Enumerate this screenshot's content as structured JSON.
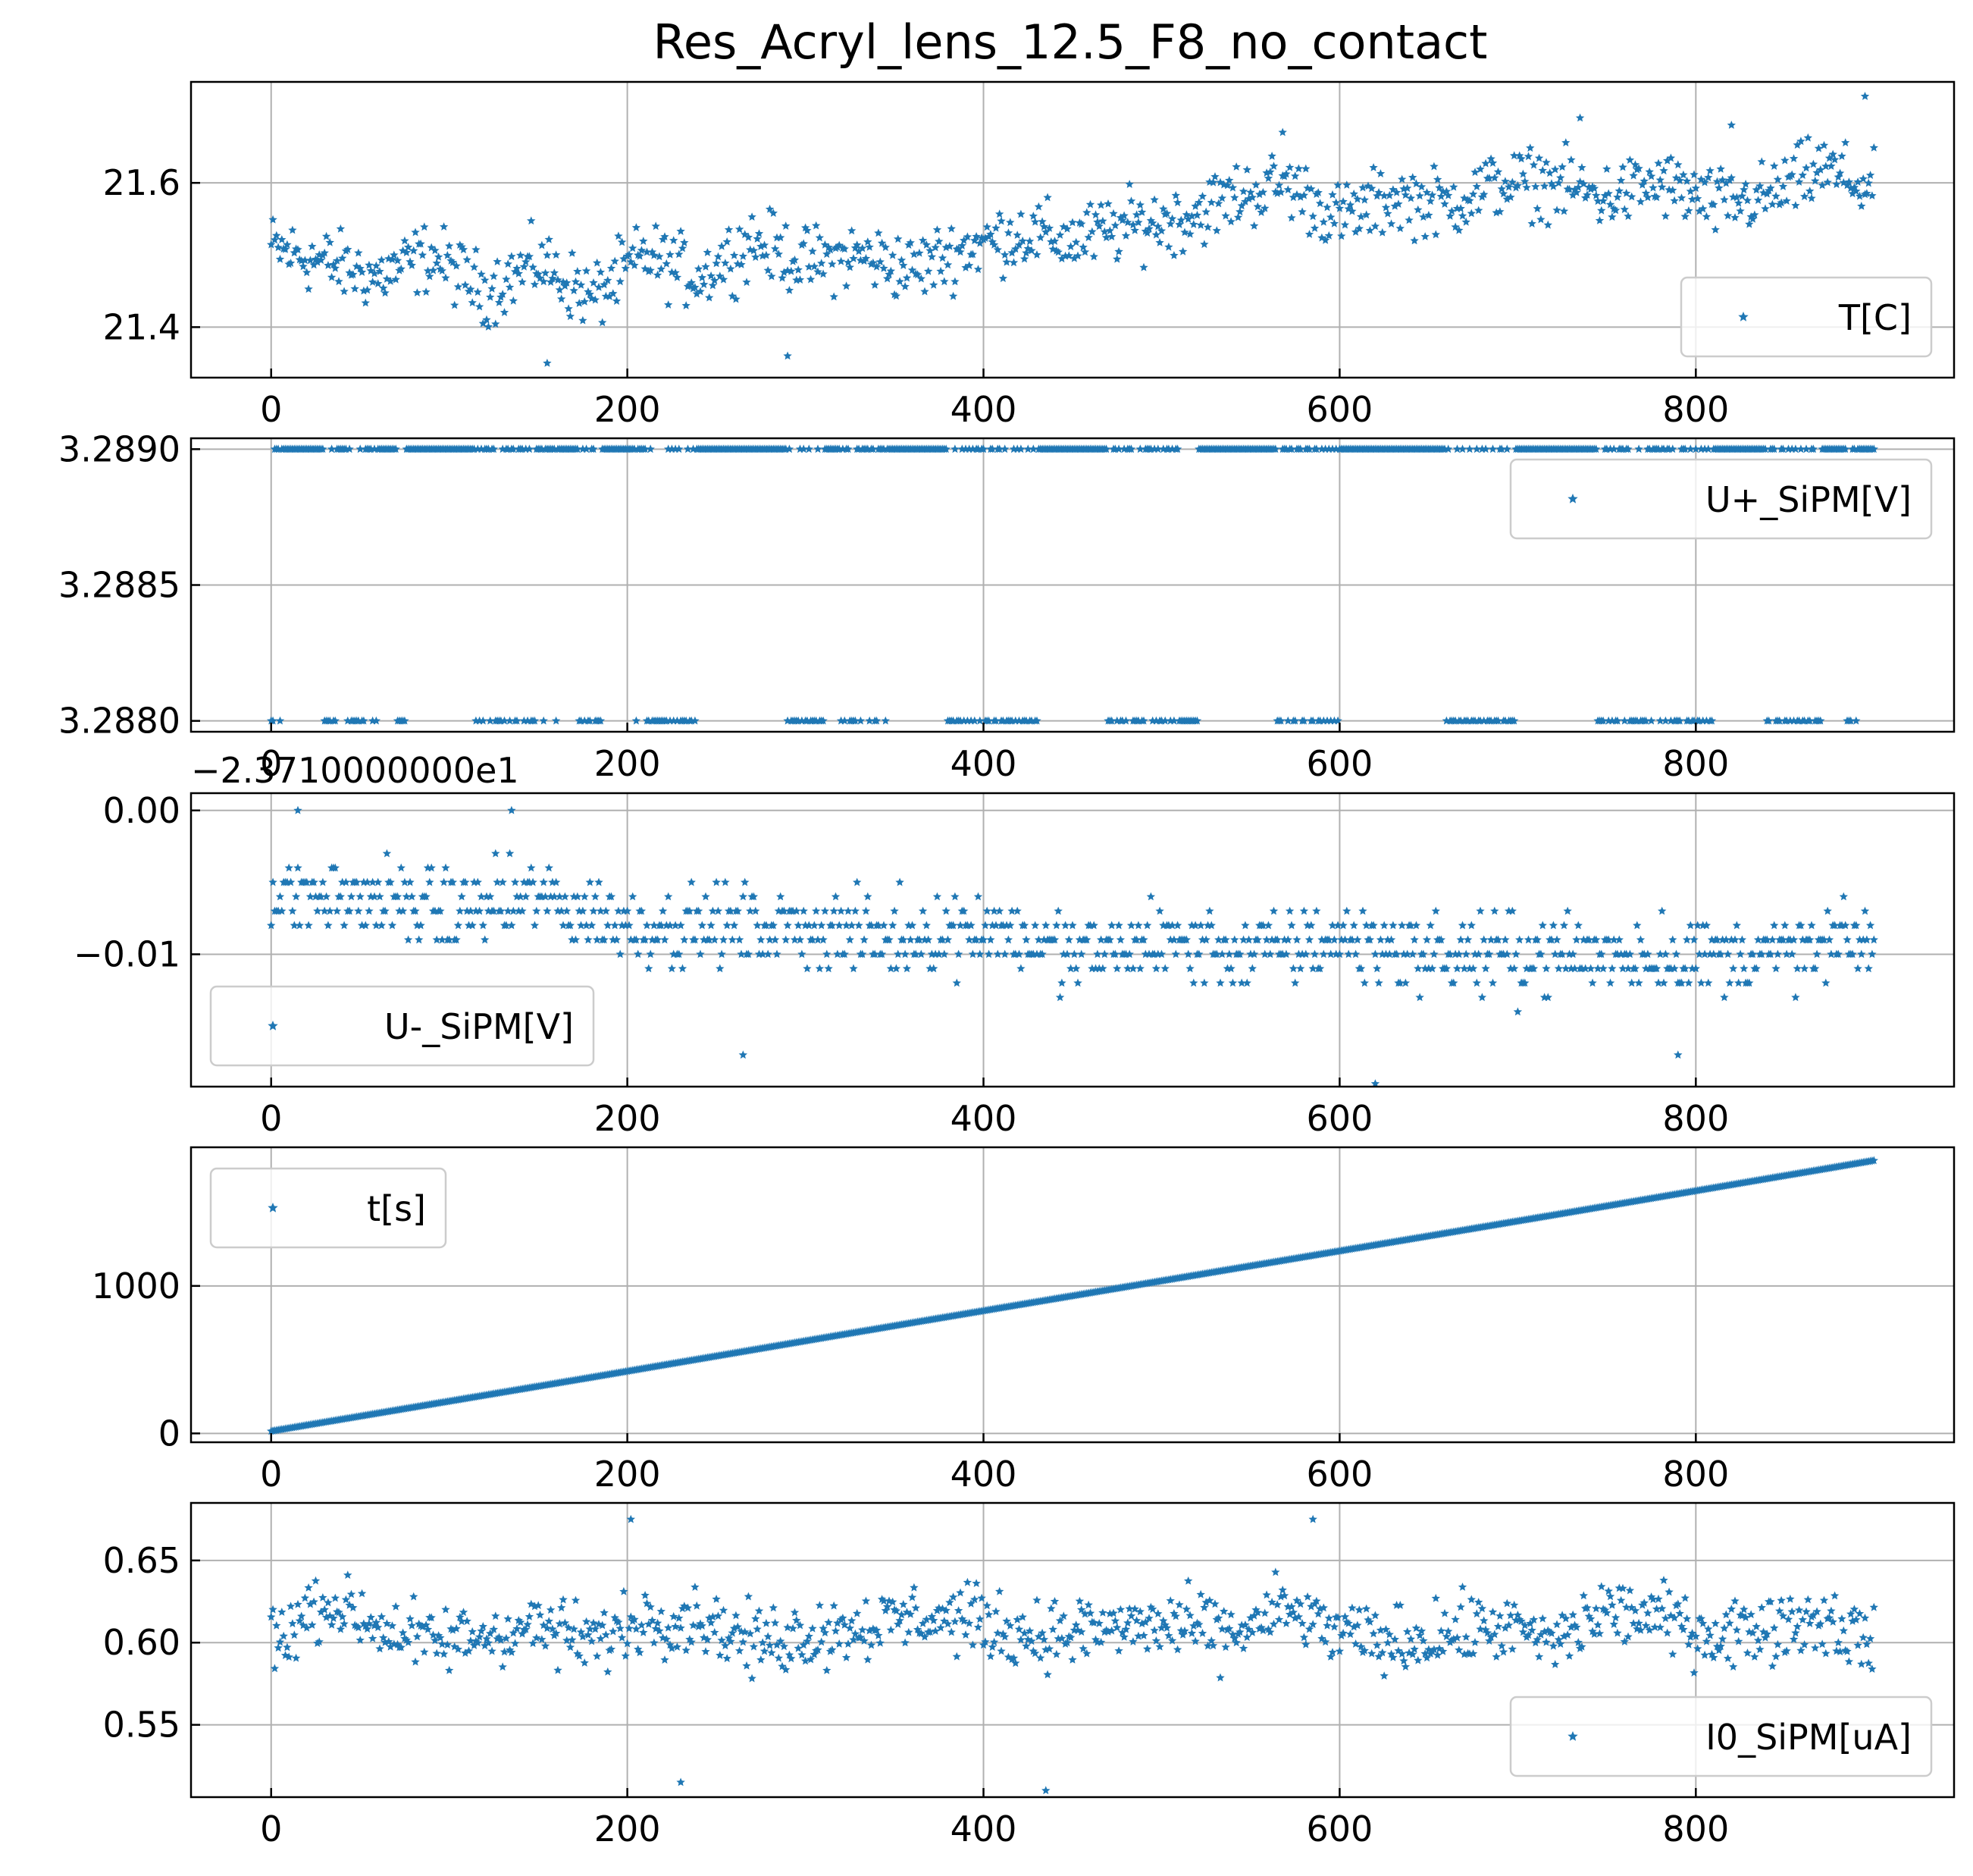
{
  "figure_title": "Res_Acryl_lens_12.5_F8_no_contact",
  "point_color": "#1f77b4",
  "chart_data": [
    {
      "type": "scatter",
      "series_name": "T[C]",
      "legend_position": "lower-right",
      "grid": true,
      "xlim": [
        -45,
        945
      ],
      "ylim": [
        21.33,
        21.74
      ],
      "x_ticks": [
        0,
        200,
        400,
        600,
        800
      ],
      "x_tick_labels": [
        "0",
        "200",
        "400",
        "600",
        "800"
      ],
      "y_ticks": [
        21.4,
        21.6
      ],
      "y_tick_labels": [
        "21.4",
        "21.6"
      ],
      "offset_label": "",
      "x": [
        0,
        30,
        60,
        90,
        120,
        150,
        180,
        210,
        240,
        270,
        300,
        330,
        360,
        390,
        420,
        450,
        480,
        510,
        540,
        570,
        600,
        630,
        660,
        690,
        720,
        750,
        780,
        810,
        840,
        870,
        900
      ],
      "y": [
        21.51,
        21.49,
        21.47,
        21.5,
        21.45,
        21.49,
        21.44,
        21.5,
        21.47,
        21.52,
        21.49,
        21.5,
        21.48,
        21.51,
        21.53,
        21.52,
        21.54,
        21.55,
        21.58,
        21.6,
        21.55,
        21.58,
        21.57,
        21.6,
        21.6,
        21.58,
        21.6,
        21.57,
        21.58,
        21.62,
        21.59
      ],
      "spread": 0.07,
      "outliers": [
        [
          155,
          21.35
        ],
        [
          290,
          21.36
        ],
        [
          735,
          21.69
        ],
        [
          895,
          21.72
        ],
        [
          820,
          21.68
        ],
        [
          568,
          21.67
        ]
      ]
    },
    {
      "type": "scatter",
      "series_name": "U+_SiPM[V]",
      "legend_position": "upper-right",
      "grid": true,
      "xlim": [
        -45,
        945
      ],
      "ylim": [
        3.28796,
        3.28904
      ],
      "x_ticks": [
        0,
        200,
        400,
        600,
        800
      ],
      "x_tick_labels": [
        "0",
        "200",
        "400",
        "600",
        "800"
      ],
      "y_ticks": [
        3.288,
        3.2885,
        3.289
      ],
      "y_tick_labels": [
        "3.2880",
        "3.2885",
        "3.2890"
      ],
      "offset_label": "",
      "levels": [
        3.289,
        3.288
      ],
      "low_level_ranges": [
        [
          0,
          5
        ],
        [
          25,
          60
        ],
        [
          70,
          75
        ],
        [
          110,
          160
        ],
        [
          170,
          185
        ],
        [
          205,
          240
        ],
        [
          290,
          310
        ],
        [
          320,
          345
        ],
        [
          380,
          430
        ],
        [
          470,
          520
        ],
        [
          560,
          600
        ],
        [
          660,
          700
        ],
        [
          745,
          810
        ],
        [
          840,
          870
        ],
        [
          885,
          890
        ]
      ]
    },
    {
      "type": "scatter",
      "series_name": "U-_SiPM[V]",
      "legend_position": "lower-left",
      "grid": true,
      "xlim": [
        -45,
        945
      ],
      "ylim": [
        -0.0192,
        0.0012
      ],
      "x_ticks": [
        0,
        200,
        400,
        600,
        800
      ],
      "x_tick_labels": [
        "0",
        "200",
        "400",
        "600",
        "800"
      ],
      "y_ticks": [
        -0.01,
        0.0
      ],
      "y_tick_labels": [
        "−0.01",
        "0.00"
      ],
      "offset_label": "−2.3710000000e1",
      "x": [
        0,
        50,
        100,
        150,
        200,
        250,
        300,
        350,
        400,
        450,
        500,
        550,
        600,
        650,
        700,
        750,
        800,
        850,
        900
      ],
      "y": [
        -0.006,
        -0.006,
        -0.007,
        -0.006,
        -0.008,
        -0.008,
        -0.008,
        -0.009,
        -0.008,
        -0.01,
        -0.009,
        -0.01,
        -0.009,
        -0.01,
        -0.01,
        -0.01,
        -0.01,
        -0.01,
        -0.009
      ],
      "spread": 0.004,
      "outliers": [
        [
          15,
          0.0
        ],
        [
          135,
          0.0
        ],
        [
          265,
          -0.017
        ],
        [
          620,
          -0.019
        ],
        [
          790,
          -0.017
        ]
      ]
    },
    {
      "type": "line",
      "series_name": "t[s]",
      "legend_position": "upper-left",
      "grid": true,
      "xlim": [
        -45,
        945
      ],
      "ylim": [
        -60,
        1940
      ],
      "x_ticks": [
        0,
        200,
        400,
        600,
        800
      ],
      "x_tick_labels": [
        "0",
        "200",
        "400",
        "600",
        "800"
      ],
      "y_ticks": [
        0,
        1000
      ],
      "y_tick_labels": [
        "0",
        "1000"
      ],
      "offset_label": "",
      "x": [
        0,
        180,
        360,
        540,
        720,
        900
      ],
      "y": [
        15,
        380,
        750,
        1115,
        1480,
        1850
      ]
    },
    {
      "type": "scatter",
      "series_name": "I0_SiPM[uA]",
      "legend_position": "lower-right",
      "grid": true,
      "xlim": [
        -45,
        945
      ],
      "ylim": [
        0.506,
        0.685
      ],
      "x_ticks": [
        0,
        200,
        400,
        600,
        800
      ],
      "x_tick_labels": [
        "0",
        "200",
        "400",
        "600",
        "800"
      ],
      "y_ticks": [
        0.55,
        0.6,
        0.65
      ],
      "y_tick_labels": [
        "0.55",
        "0.60",
        "0.65"
      ],
      "offset_label": "",
      "x": [
        0,
        30,
        60,
        90,
        120,
        150,
        180,
        210,
        240,
        270,
        300,
        330,
        360,
        390,
        420,
        450,
        480,
        510,
        540,
        570,
        600,
        630,
        660,
        690,
        720,
        750,
        780,
        810,
        840,
        870,
        900
      ],
      "y": [
        0.6,
        0.625,
        0.61,
        0.6,
        0.605,
        0.61,
        0.6,
        0.615,
        0.615,
        0.6,
        0.605,
        0.61,
        0.615,
        0.615,
        0.605,
        0.605,
        0.61,
        0.61,
        0.605,
        0.62,
        0.605,
        0.6,
        0.605,
        0.61,
        0.6,
        0.62,
        0.615,
        0.605,
        0.61,
        0.615,
        0.6
      ],
      "spread": 0.03,
      "outliers": [
        [
          202,
          0.675
        ],
        [
          230,
          0.515
        ],
        [
          435,
          0.51
        ],
        [
          585,
          0.675
        ],
        [
          455,
          0.62
        ]
      ]
    }
  ]
}
